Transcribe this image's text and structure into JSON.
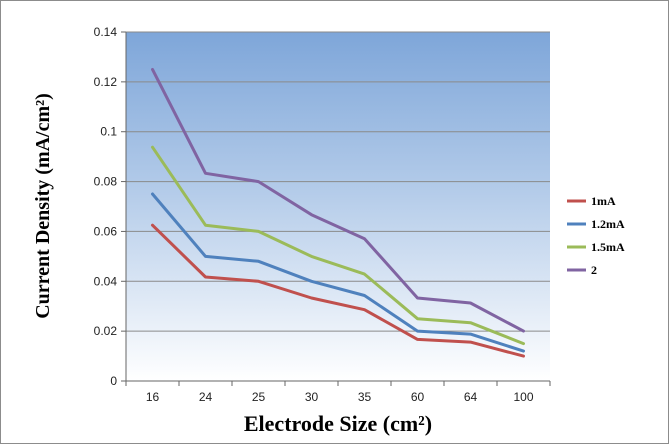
{
  "chart_data": {
    "type": "line",
    "categories": [
      "16",
      "24",
      "25",
      "30",
      "35",
      "60",
      "64",
      "100"
    ],
    "series": [
      {
        "name": "1mA",
        "color": "#c0504d",
        "values": [
          0.0625,
          0.0417,
          0.04,
          0.0333,
          0.0286,
          0.0167,
          0.0156,
          0.01
        ]
      },
      {
        "name": "1.2mA",
        "color": "#4f81bd",
        "values": [
          0.075,
          0.05,
          0.048,
          0.04,
          0.0343,
          0.02,
          0.0188,
          0.012
        ]
      },
      {
        "name": "1.5mA",
        "color": "#9bbb59",
        "values": [
          0.0938,
          0.0625,
          0.06,
          0.05,
          0.0429,
          0.025,
          0.0234,
          0.015
        ]
      },
      {
        "name": "2",
        "color": "#8064a2",
        "values": [
          0.125,
          0.0833,
          0.08,
          0.0667,
          0.0571,
          0.0333,
          0.0313,
          0.02
        ]
      }
    ],
    "xlabel": "Electrode Size (cm²)",
    "ylabel": "Current Density (mA/cm²)",
    "ylim": [
      0,
      0.14
    ],
    "yticks": [
      "0",
      "0.02",
      "0.04",
      "0.06",
      "0.08",
      "0.1",
      "0.12",
      "0.14"
    ],
    "grid": true,
    "legend": "right",
    "plot_background": "blue-to-white gradient"
  }
}
